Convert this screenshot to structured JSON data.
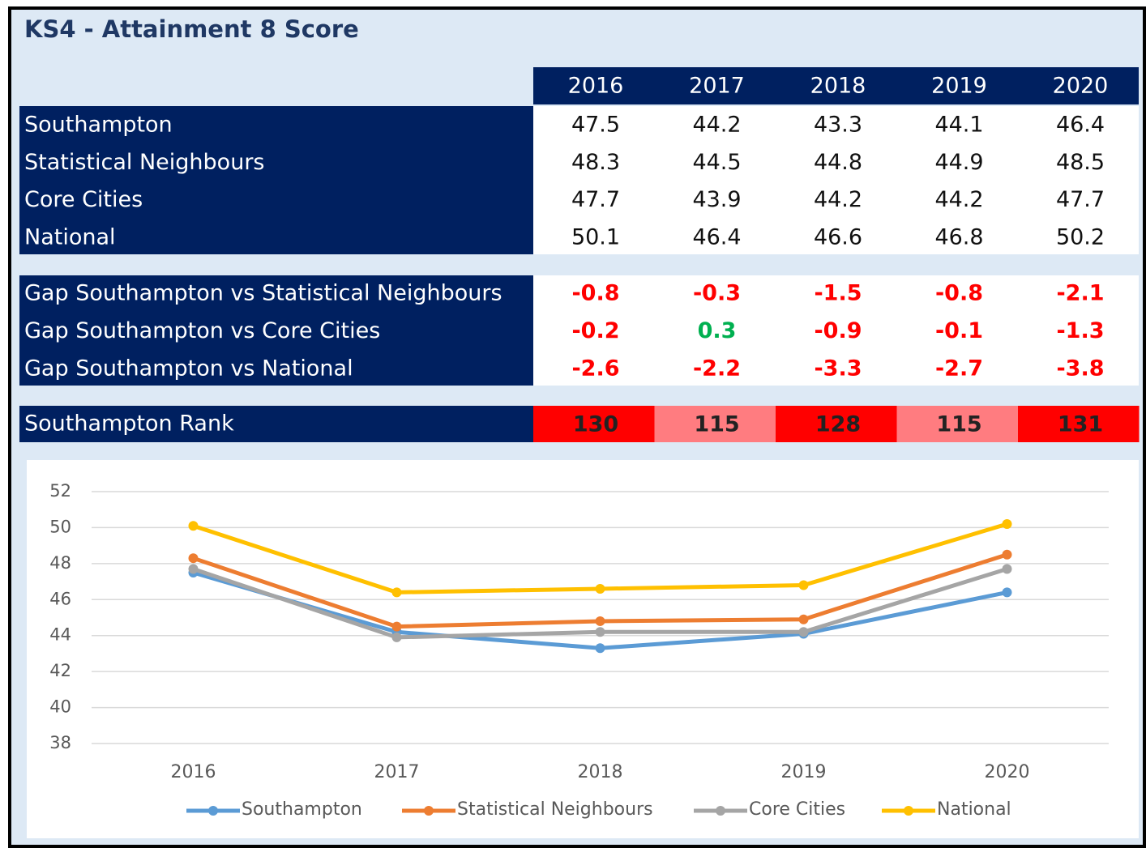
{
  "title": "KS4 - Attainment 8 Score",
  "table": {
    "years": [
      "2016",
      "2017",
      "2018",
      "2019",
      "2020"
    ],
    "rows": [
      {
        "label": "Southampton",
        "values": [
          47.5,
          44.2,
          43.3,
          44.1,
          46.4
        ]
      },
      {
        "label": "Statistical Neighbours",
        "values": [
          48.3,
          44.5,
          44.8,
          44.9,
          48.5
        ]
      },
      {
        "label": "Core Cities",
        "values": [
          47.7,
          43.9,
          44.2,
          44.2,
          47.7
        ]
      },
      {
        "label": "National",
        "values": [
          50.1,
          46.4,
          46.6,
          46.8,
          50.2
        ]
      }
    ]
  },
  "gaps": {
    "negative_color": "#ff0000",
    "positive_color": "#00b050",
    "rows": [
      {
        "label": "Gap Southampton vs Statistical Neighbours",
        "values": [
          -0.8,
          -0.3,
          -1.5,
          -0.8,
          -2.1
        ]
      },
      {
        "label": "Gap Southampton vs Core Cities",
        "values": [
          -0.2,
          0.3,
          -0.9,
          -0.1,
          -1.3
        ]
      },
      {
        "label": "Gap Southampton vs National",
        "values": [
          -2.6,
          -2.2,
          -3.3,
          -2.7,
          -3.8
        ]
      }
    ]
  },
  "rank": {
    "label": "Southampton Rank",
    "values": [
      130,
      115,
      128,
      115,
      131
    ],
    "colors": [
      "#ff0000",
      "#ff7c80",
      "#ff0000",
      "#ff7c80",
      "#ff0000"
    ]
  },
  "chart_data": {
    "type": "line",
    "categories": [
      "2016",
      "2017",
      "2018",
      "2019",
      "2020"
    ],
    "ylim": [
      38,
      52
    ],
    "yticks": [
      38,
      40,
      42,
      44,
      46,
      48,
      50,
      52
    ],
    "grid": true,
    "legend": "bottom",
    "series": [
      {
        "name": "Southampton",
        "color": "#5b9bd5",
        "values": [
          47.5,
          44.2,
          43.3,
          44.1,
          46.4
        ]
      },
      {
        "name": "Statistical Neighbours",
        "color": "#ed7d31",
        "values": [
          48.3,
          44.5,
          44.8,
          44.9,
          48.5
        ]
      },
      {
        "name": "Core Cities",
        "color": "#a5a5a5",
        "values": [
          47.7,
          43.9,
          44.2,
          44.2,
          47.7
        ]
      },
      {
        "name": "National",
        "color": "#ffc000",
        "values": [
          50.1,
          46.4,
          46.6,
          46.8,
          50.2
        ]
      }
    ]
  }
}
